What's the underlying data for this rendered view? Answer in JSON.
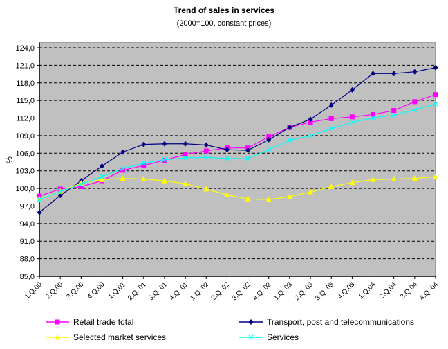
{
  "chart_data": {
    "type": "line",
    "title": "Trend of sales in services",
    "subtitle": "(2000=100, constant prices)",
    "xlabel": "",
    "ylabel": "%",
    "ylim": [
      85,
      124
    ],
    "ytick_step": 3,
    "yticks": [
      "124,0",
      "121,0",
      "118,0",
      "115,0",
      "112,0",
      "109,0",
      "106,0",
      "103,0",
      "100,0",
      "97,0",
      "94,0",
      "91,0",
      "88,0",
      "85,0"
    ],
    "grid": true,
    "legend_position": "bottom",
    "categories": [
      "1.Q.00",
      "2.Q.00",
      "3.Q.00",
      "4.Q.00",
      "1.Q.01",
      "2.Q. 01",
      "3.Q. 01",
      "4.Q. 01",
      "1.Q. 02",
      "2.Q. 02",
      "3.Q. 02",
      "4.Q. 02",
      "1.Q. 03",
      "2.Q. 03",
      "3.Q. 03",
      "4.Q.03",
      "1.Q.04",
      "2.Q.04",
      "3.Q.04",
      "4.Q. 04"
    ],
    "series": [
      {
        "name": "Retail trade total",
        "color": "#FF00FF",
        "marker": "square",
        "values": [
          98.7,
          99.9,
          100.3,
          101.3,
          103.1,
          103.9,
          104.8,
          105.8,
          106.4,
          106.9,
          106.9,
          108.8,
          110.4,
          111.3,
          111.9,
          112.2,
          112.6,
          113.3,
          114.8,
          116.0
        ]
      },
      {
        "name": "Transport, post and telecommunications",
        "color": "#000080",
        "marker": "diamond",
        "values": [
          95.9,
          98.8,
          101.3,
          103.8,
          106.2,
          107.5,
          107.6,
          107.6,
          107.4,
          106.6,
          106.5,
          108.3,
          110.4,
          111.8,
          114.2,
          116.8,
          119.6,
          119.6,
          119.9,
          120.6
        ]
      },
      {
        "name": "Selected market services",
        "color": "#FFFF00",
        "marker": "triangle",
        "values": [
          98.2,
          99.5,
          100.9,
          101.5,
          101.7,
          101.6,
          101.3,
          100.8,
          99.9,
          98.9,
          98.2,
          98.1,
          98.6,
          99.4,
          100.3,
          101.0,
          101.5,
          101.6,
          101.7,
          102.0
        ]
      },
      {
        "name": "Services",
        "color": "#00FFFF",
        "marker": "x",
        "values": [
          98.1,
          99.5,
          100.7,
          102.0,
          103.4,
          104.3,
          104.9,
          105.2,
          105.3,
          105.1,
          105.1,
          106.6,
          108.2,
          109.0,
          110.2,
          111.3,
          112.0,
          112.5,
          113.4,
          114.4
        ]
      }
    ],
    "plot_background": "#C0C0C0"
  }
}
